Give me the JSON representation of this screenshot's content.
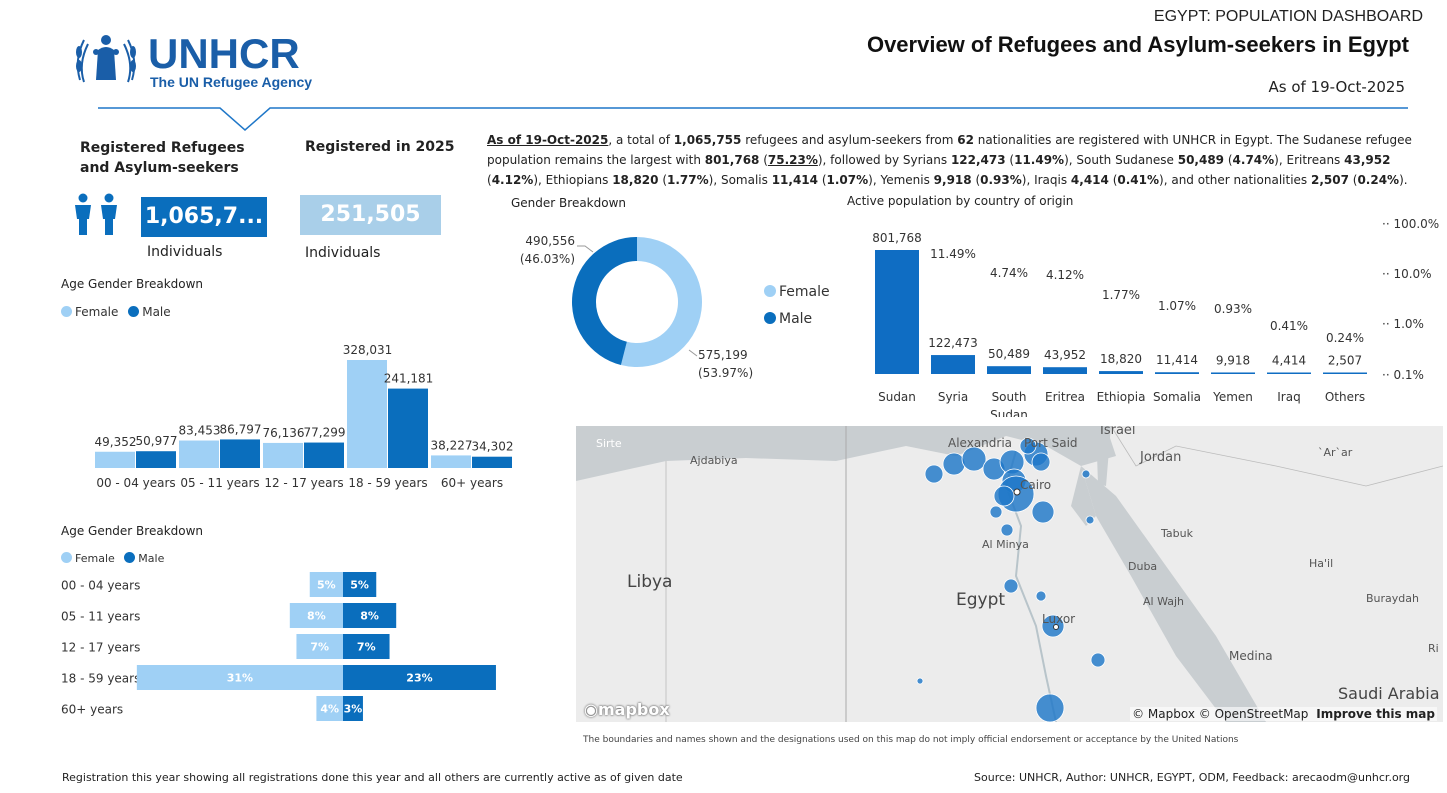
{
  "header": {
    "logo_main": "UNHCR",
    "logo_sub": "The UN Refugee Agency",
    "dashboard_label": "EGYPT: POPULATION DASHBOARD",
    "title": "Overview of Refugees and Asylum-seekers in Egypt",
    "as_of": "As of 19-Oct-2025"
  },
  "kpis": {
    "registered_title": "Registered Refugees and Asylum-seekers",
    "registered_value": "1,065,7...",
    "registered_unit": "Individuals",
    "year_title": "Registered in 2025",
    "year_value": "251,505",
    "year_unit": "Individuals"
  },
  "summary": {
    "p1": "As of 19-Oct-2025",
    "p2": ", a total of ",
    "p3": "1,065,755",
    "p4": " refugees and asylum-seekers from ",
    "p5": "62",
    "p6": " nationalities are registered with UNHCR in Egypt. The Sudanese refugee population remains the largest with ",
    "p7": "801,768",
    "p8": " (",
    "p9": "75.23%",
    "p10": "), followed by Syrians ",
    "p11": "122,473",
    "p12": " (",
    "p13": "11.49%",
    "p14": "), South Sudanese ",
    "p15": "50,489",
    "p16": " (",
    "p17": "4.74%",
    "p18": "), Eritreans ",
    "p19": "43,952",
    "p20": " (",
    "p21": "4.12%",
    "p22": "), Ethiopians ",
    "p23": "18,820",
    "p24": " (",
    "p25": "1.77%",
    "p26": "), Somalis ",
    "p27": "11,414",
    "p28": " (",
    "p29": "1.07%",
    "p30": "), Yemenis ",
    "p31": "9,918",
    "p32": " (",
    "p33": "0.93%",
    "p34": "), Iraqis ",
    "p35": "4,414",
    "p36": " (",
    "p37": "0.41%",
    "p38": "), and other nationalities ",
    "p39": "2,507",
    "p40": " (",
    "p41": "0.24%",
    "p42": ")."
  },
  "colors": {
    "female": "#9fd0f5",
    "male": "#0a6ebd",
    "bar": "#0f6dc3",
    "kpi1": "#0a6ebd",
    "kpi2": "#a9cfe9",
    "logo": "#1a5ea8"
  },
  "legend": {
    "female": "Female",
    "male": "Male"
  },
  "chart_data": [
    {
      "type": "bar",
      "title": "Age Gender Breakdown",
      "categories": [
        "00 - 04 years",
        "05 - 11 years",
        "12 - 17 years",
        "18 - 59 years",
        "60+ years"
      ],
      "series": [
        {
          "name": "Female",
          "values": [
            49352,
            83453,
            76136,
            328031,
            38227
          ],
          "labels": [
            "49,352",
            "83,453",
            "76,136",
            "328,031",
            "38,227"
          ]
        },
        {
          "name": "Male",
          "values": [
            50977,
            86797,
            77299,
            241181,
            34302
          ],
          "labels": [
            "50,977",
            "86,797",
            "77,299",
            "241,181",
            "34,302"
          ]
        }
      ]
    },
    {
      "type": "bar",
      "title": "Age Gender Breakdown",
      "orientation": "horizontal-pyramid",
      "categories": [
        "00 - 04 years",
        "05 - 11 years",
        "12 - 17 years",
        "18 - 59 years",
        "60+ years"
      ],
      "series": [
        {
          "name": "Female",
          "values": [
            5,
            8,
            7,
            31,
            4
          ],
          "labels": [
            "5%",
            "8%",
            "7%",
            "31%",
            "4%"
          ]
        },
        {
          "name": "Male",
          "values": [
            5,
            8,
            7,
            23,
            3
          ],
          "labels": [
            "5%",
            "8%",
            "7%",
            "23%",
            "3%"
          ]
        }
      ]
    },
    {
      "type": "pie",
      "title": "Gender Breakdown",
      "categories": [
        "Female",
        "Male"
      ],
      "values": [
        575199,
        490556
      ],
      "labels": [
        "575,199",
        "490,556"
      ],
      "percents": [
        "(53.97%)",
        "(46.03%)"
      ]
    },
    {
      "type": "bar",
      "title": "Active population by country of origin",
      "categories": [
        "Sudan",
        "Syria",
        "South Sudan",
        "Eritrea",
        "Ethiopia",
        "Somalia",
        "Yemen",
        "Iraq",
        "Others"
      ],
      "values": [
        801768,
        122473,
        50489,
        43952,
        18820,
        11414,
        9918,
        4414,
        2507
      ],
      "value_labels": [
        "801,768",
        "122,473",
        "50,489",
        "43,952",
        "18,820",
        "11,414",
        "9,918",
        "4,414",
        "2,507"
      ],
      "percent_labels": [
        "",
        "11.49%",
        "4.74%",
        "4.12%",
        "1.77%",
        "1.07%",
        "0.93%",
        "0.41%",
        "0.24%"
      ],
      "y_axis_ticks": [
        "100.0%",
        "10.0%",
        "1.0%",
        "0.1%"
      ],
      "yscale": "log"
    }
  ],
  "map": {
    "labels": {
      "sirte": "Sirte",
      "ajdabiya": "Ajdabiya",
      "alexandria": "Alexandria",
      "port_said": "Port Said",
      "israel": "Israel",
      "jordan": "Jordan",
      "arar": "`Ar`ar",
      "cairo": "Cairo",
      "tabuk": "Tabuk",
      "al_minya": "Al Minya",
      "libya": "Libya",
      "egypt": "Egypt",
      "duba": "Duba",
      "hail": "Ha'il",
      "al_wajh": "Al Wajh",
      "buraydah": "Buraydah",
      "luxor": "Luxor",
      "medina": "Medina",
      "saudi": "Saudi Arabia",
      "ri": "Ri"
    },
    "mapbox": "mapbox",
    "attribution_1": "© Mapbox © OpenStreetMap",
    "attribution_2": "Improve this map",
    "disclaimer": "The boundaries and names shown and the designations used on this map do not imply official endorsement or acceptance by the United Nations"
  },
  "footer": {
    "left": "Registration this year showing all registrations done this year and all others are currently active as of given date",
    "right": "Source: UNHCR,  Author: UNHCR, EGYPT, ODM, Feedback: arecaodm@unhcr.org"
  }
}
